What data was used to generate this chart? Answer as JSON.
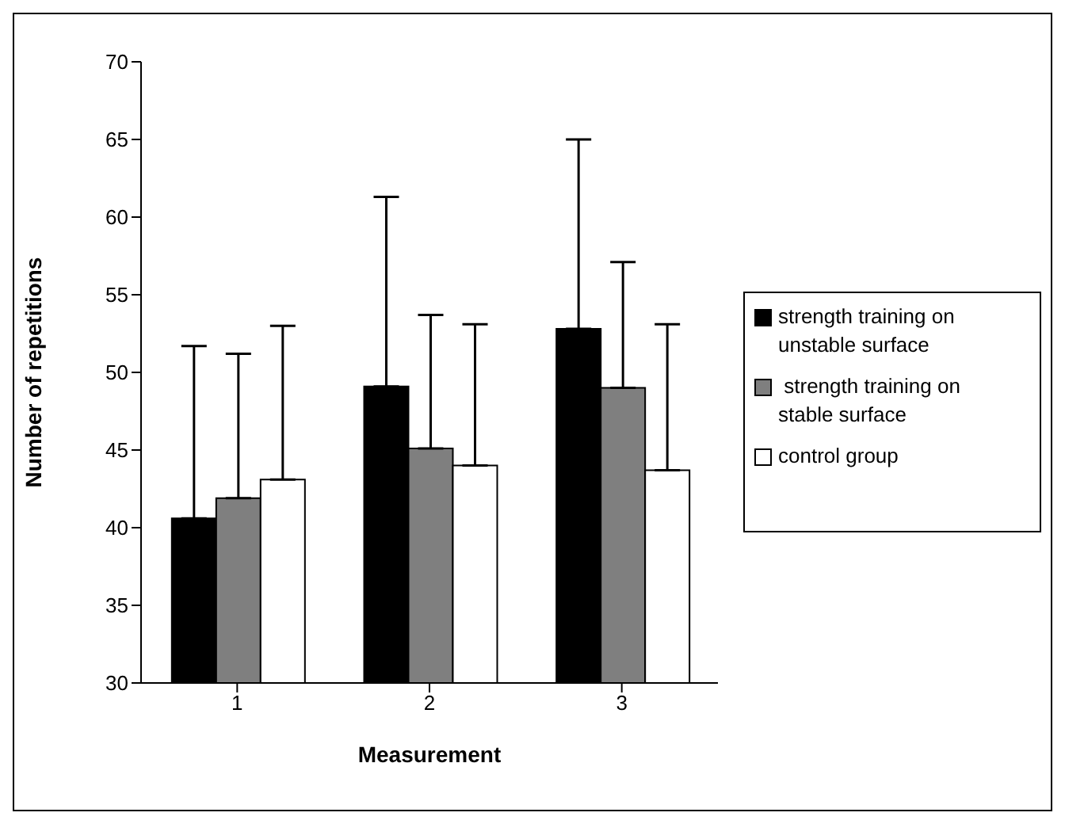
{
  "chart_data": {
    "type": "bar",
    "xlabel": "Measurement",
    "ylabel": "Number of repetitions",
    "categories": [
      "1",
      "2",
      "3"
    ],
    "series": [
      {
        "name": "strength training on unstable surface",
        "color": "#000000",
        "values": [
          40.6,
          49.1,
          52.8
        ],
        "errors": [
          [
            40.6,
            51.7
          ],
          [
            49.1,
            61.3
          ],
          [
            52.8,
            65.0
          ]
        ]
      },
      {
        "name": " strength training on stable surface",
        "color": "#7f7f7f",
        "values": [
          41.9,
          45.1,
          49.0
        ],
        "errors": [
          [
            41.9,
            51.2
          ],
          [
            45.1,
            53.7
          ],
          [
            49.0,
            57.1
          ]
        ]
      },
      {
        "name": "control group",
        "color": "#ffffff",
        "values": [
          43.1,
          44.0,
          43.7
        ],
        "errors": [
          [
            43.1,
            53.0
          ],
          [
            44.0,
            53.1
          ],
          [
            43.7,
            53.1
          ]
        ]
      }
    ],
    "ylim": [
      30,
      70
    ],
    "yticks": [
      30,
      35,
      40,
      45,
      50,
      55,
      60,
      65,
      70
    ],
    "grid": false,
    "legend": "right"
  }
}
